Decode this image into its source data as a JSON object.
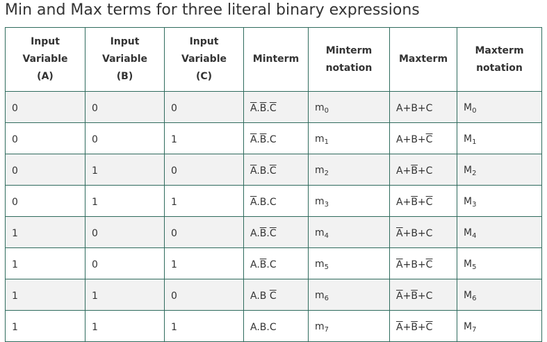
{
  "title": "Min and Max terms for three literal binary expressions",
  "headers": [
    [
      "Input",
      "Variable",
      "(A)"
    ],
    [
      "Input",
      "Variable",
      "(B)"
    ],
    [
      "Input",
      "Variable",
      "(C)"
    ],
    [
      "Minterm"
    ],
    [
      "Minterm",
      "notation"
    ],
    [
      "Maxterm"
    ],
    [
      "Maxterm",
      "notation"
    ]
  ],
  "rows": [
    {
      "a": "0",
      "b": "0",
      "c": "0",
      "minterm": [
        {
          "t": "A",
          "bar": true
        },
        {
          "t": ".",
          "bar": false
        },
        {
          "t": "B",
          "bar": true
        },
        {
          "t": ".",
          "bar": false
        },
        {
          "t": "C",
          "bar": true
        }
      ],
      "mnot": {
        "base": "m",
        "sub": "0"
      },
      "maxterm": [
        {
          "t": "A",
          "bar": false
        },
        {
          "t": "+",
          "bar": false
        },
        {
          "t": "B",
          "bar": false
        },
        {
          "t": "+",
          "bar": false
        },
        {
          "t": "C",
          "bar": false
        }
      ],
      "Mnot": {
        "base": "M",
        "sub": "0"
      }
    },
    {
      "a": "0",
      "b": "0",
      "c": "1",
      "minterm": [
        {
          "t": "A",
          "bar": true
        },
        {
          "t": ".",
          "bar": false
        },
        {
          "t": "B",
          "bar": true
        },
        {
          "t": ".",
          "bar": false
        },
        {
          "t": "C",
          "bar": false
        }
      ],
      "mnot": {
        "base": "m",
        "sub": "1"
      },
      "maxterm": [
        {
          "t": "A",
          "bar": false
        },
        {
          "t": "+",
          "bar": false
        },
        {
          "t": "B",
          "bar": false
        },
        {
          "t": "+",
          "bar": false
        },
        {
          "t": "C",
          "bar": true
        }
      ],
      "Mnot": {
        "base": "M",
        "sub": "1"
      }
    },
    {
      "a": "0",
      "b": "1",
      "c": "0",
      "minterm": [
        {
          "t": "A",
          "bar": true
        },
        {
          "t": ".",
          "bar": false
        },
        {
          "t": "B",
          "bar": false
        },
        {
          "t": ".",
          "bar": false
        },
        {
          "t": "C",
          "bar": true
        }
      ],
      "mnot": {
        "base": "m",
        "sub": "2"
      },
      "maxterm": [
        {
          "t": "A",
          "bar": false
        },
        {
          "t": "+",
          "bar": false
        },
        {
          "t": "B",
          "bar": true
        },
        {
          "t": "+",
          "bar": false
        },
        {
          "t": "C",
          "bar": false
        }
      ],
      "Mnot": {
        "base": "M",
        "sub": "2"
      }
    },
    {
      "a": "0",
      "b": "1",
      "c": "1",
      "minterm": [
        {
          "t": "A",
          "bar": true
        },
        {
          "t": ".",
          "bar": false
        },
        {
          "t": "B",
          "bar": false
        },
        {
          "t": ".",
          "bar": false
        },
        {
          "t": "C",
          "bar": false
        }
      ],
      "mnot": {
        "base": "m",
        "sub": "3"
      },
      "maxterm": [
        {
          "t": "A",
          "bar": false
        },
        {
          "t": "+",
          "bar": false
        },
        {
          "t": "B",
          "bar": true
        },
        {
          "t": "+",
          "bar": false
        },
        {
          "t": "C",
          "bar": true
        }
      ],
      "Mnot": {
        "base": "M",
        "sub": "3"
      }
    },
    {
      "a": "1",
      "b": "0",
      "c": "0",
      "minterm": [
        {
          "t": "A",
          "bar": false
        },
        {
          "t": ".",
          "bar": false
        },
        {
          "t": "B",
          "bar": true
        },
        {
          "t": ".",
          "bar": false
        },
        {
          "t": "C",
          "bar": true
        }
      ],
      "mnot": {
        "base": "m",
        "sub": "4"
      },
      "maxterm": [
        {
          "t": "A",
          "bar": true
        },
        {
          "t": "+",
          "bar": false
        },
        {
          "t": "B",
          "bar": false
        },
        {
          "t": "+",
          "bar": false
        },
        {
          "t": "C",
          "bar": false
        }
      ],
      "Mnot": {
        "base": "M",
        "sub": "4"
      }
    },
    {
      "a": "1",
      "b": "0",
      "c": "1",
      "minterm": [
        {
          "t": "A",
          "bar": false
        },
        {
          "t": ".",
          "bar": false
        },
        {
          "t": "B",
          "bar": true
        },
        {
          "t": ".",
          "bar": false
        },
        {
          "t": "C",
          "bar": false
        }
      ],
      "mnot": {
        "base": "m",
        "sub": "5"
      },
      "maxterm": [
        {
          "t": "A",
          "bar": true
        },
        {
          "t": "+",
          "bar": false
        },
        {
          "t": "B",
          "bar": false
        },
        {
          "t": "+",
          "bar": false
        },
        {
          "t": "C",
          "bar": true
        }
      ],
      "Mnot": {
        "base": "M",
        "sub": "5"
      }
    },
    {
      "a": "1",
      "b": "1",
      "c": "0",
      "minterm": [
        {
          "t": "A",
          "bar": false
        },
        {
          "t": ".",
          "bar": false
        },
        {
          "t": "B",
          "bar": false
        },
        {
          "t": " ",
          "bar": false
        },
        {
          "t": "C",
          "bar": true
        }
      ],
      "mnot": {
        "base": "m",
        "sub": "6"
      },
      "maxterm": [
        {
          "t": "A",
          "bar": true
        },
        {
          "t": "+",
          "bar": false
        },
        {
          "t": "B",
          "bar": true
        },
        {
          "t": "+",
          "bar": false
        },
        {
          "t": "C",
          "bar": false
        }
      ],
      "Mnot": {
        "base": "M",
        "sub": "6"
      }
    },
    {
      "a": "1",
      "b": "1",
      "c": "1",
      "minterm": [
        {
          "t": "A",
          "bar": false
        },
        {
          "t": ".",
          "bar": false
        },
        {
          "t": "B",
          "bar": false
        },
        {
          "t": ".",
          "bar": false
        },
        {
          "t": "C",
          "bar": false
        }
      ],
      "mnot": {
        "base": "m",
        "sub": "7"
      },
      "maxterm": [
        {
          "t": "A",
          "bar": true
        },
        {
          "t": "+",
          "bar": false
        },
        {
          "t": "B",
          "bar": true
        },
        {
          "t": "+",
          "bar": false
        },
        {
          "t": "C",
          "bar": true
        }
      ],
      "Mnot": {
        "base": "M",
        "sub": "7"
      }
    }
  ]
}
